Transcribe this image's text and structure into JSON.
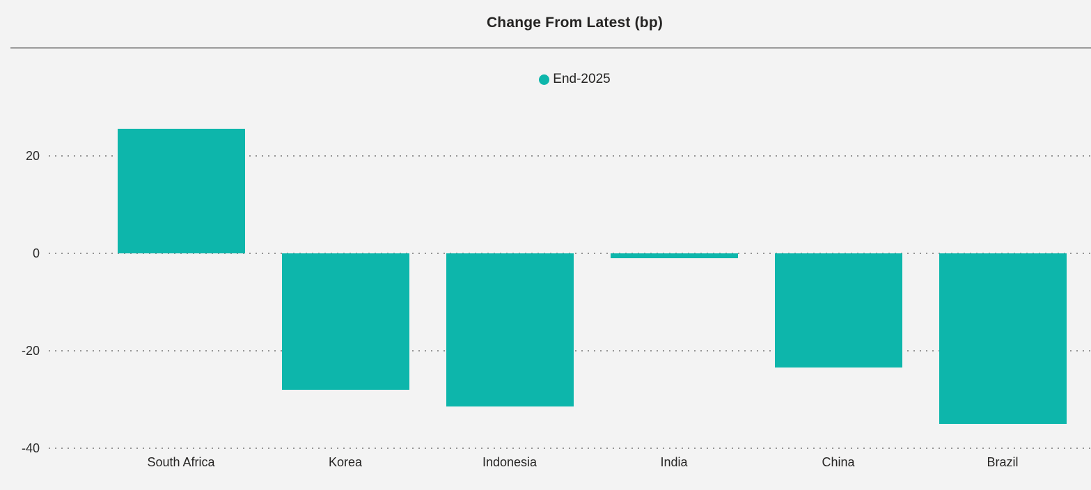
{
  "title": "Change From Latest (bp)",
  "legend": {
    "label": "End-2025"
  },
  "colors": {
    "bar": "#0DB6AB",
    "background": "#F3F3F3",
    "title_text": "#252423",
    "axis_text": "#2B2B2B",
    "gridline": "#949494",
    "divider": "#7C7C7C"
  },
  "chart_data": {
    "type": "bar",
    "title": "Change From Latest (bp)",
    "categories": [
      "South Africa",
      "Korea",
      "Indonesia",
      "India",
      "China",
      "Brazil"
    ],
    "series": [
      {
        "name": "End-2025",
        "values": [
          25.5,
          -28,
          -31.5,
          -1,
          -23.5,
          -35
        ]
      }
    ],
    "values": [
      25.5,
      -28,
      -31.5,
      -1,
      -23.5,
      -35
    ],
    "xlabel": "",
    "ylabel": "",
    "yticks": [
      20,
      0,
      -20,
      -40
    ],
    "ylim": [
      -40,
      27
    ],
    "grid": "horizontal-dotted",
    "legend_position": "top-center"
  }
}
